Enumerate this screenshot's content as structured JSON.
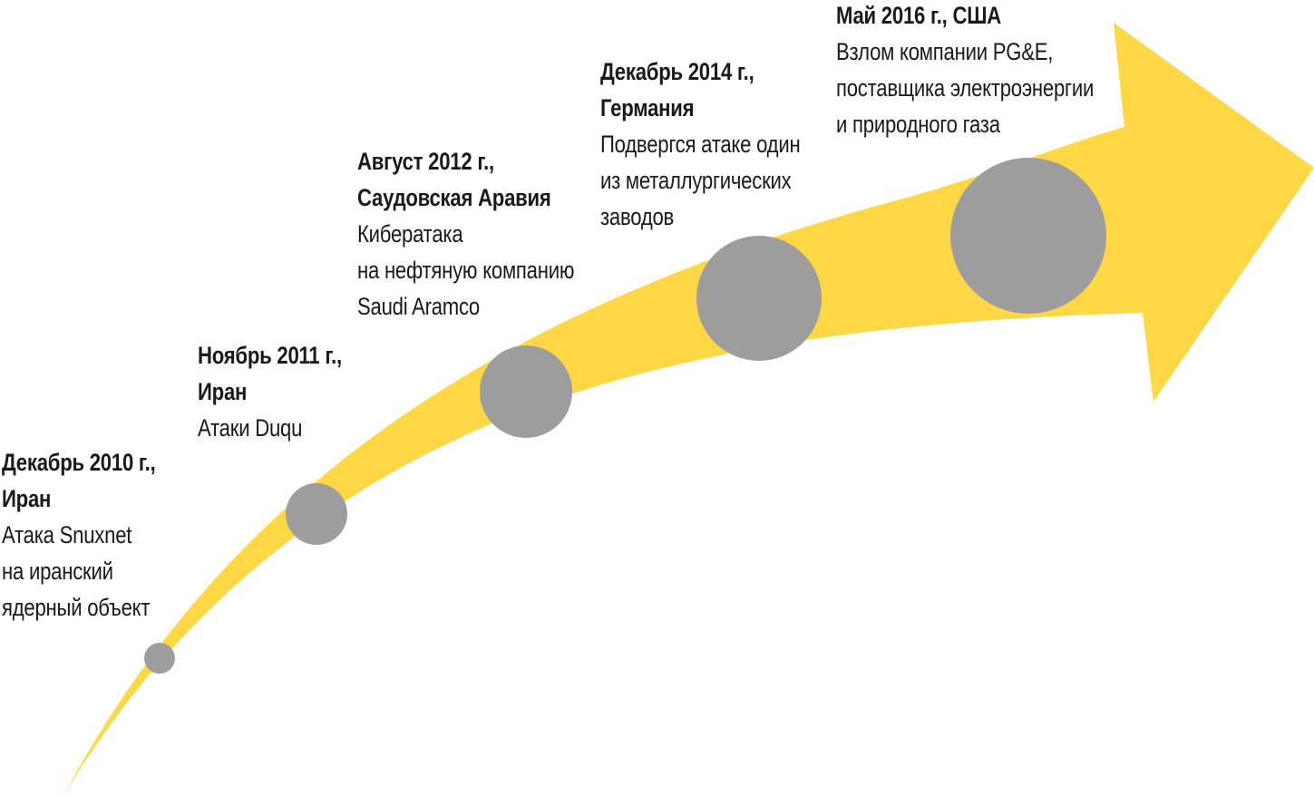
{
  "colors": {
    "arrow": "#fdd744",
    "marker": "#9d9d9d",
    "text": "#1a1a1a"
  },
  "events": [
    {
      "date": "Декабрь 2010 г.,",
      "place": "Иран",
      "description": [
        "Атака Snuxnet",
        "на иранский",
        "ядерный объект"
      ]
    },
    {
      "date": "Ноябрь 2011 г.,",
      "place": "Иран",
      "description": [
        "Атаки Duqu"
      ]
    },
    {
      "date": "Август 2012 г.,",
      "place": "Саудовская Аравия",
      "description": [
        "Кибератака",
        "на нефтяную компанию",
        "Saudi Aramco"
      ]
    },
    {
      "date": "Декабрь 2014 г.,",
      "place": "Германия",
      "description": [
        "Подвергся атаке один",
        "из металлургических",
        "заводов"
      ]
    },
    {
      "date": "Май 2016 г., США",
      "place": "",
      "description": [
        "Взлом компании PG&E,",
        "поставщика электроэнергии",
        "и природного газа"
      ]
    }
  ]
}
